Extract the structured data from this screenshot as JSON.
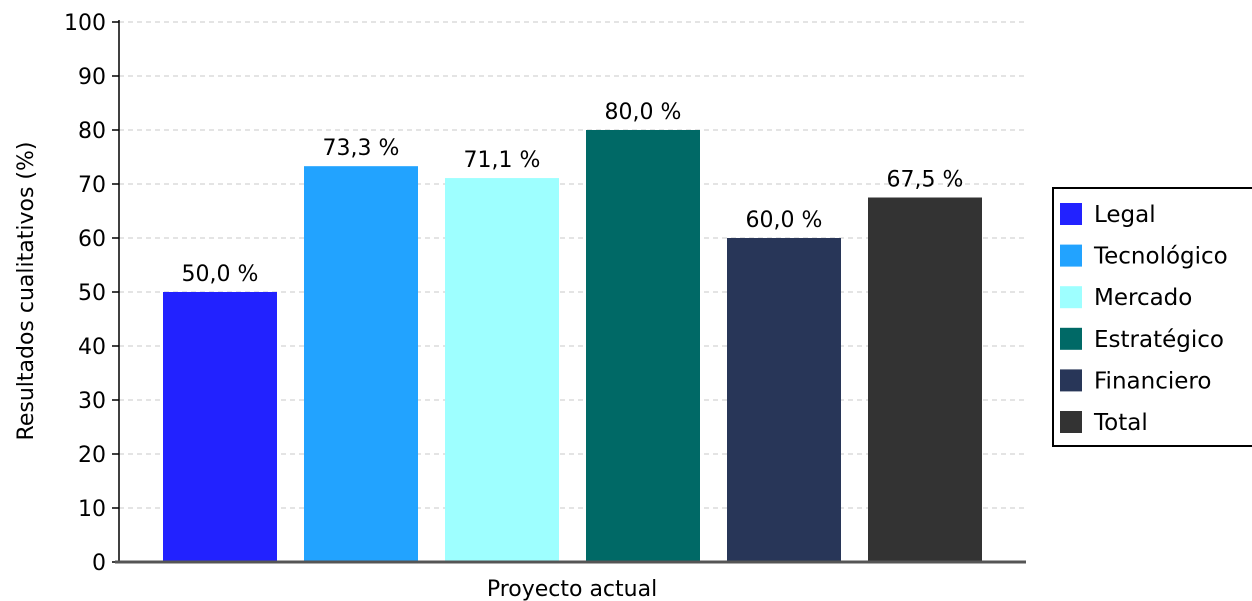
{
  "chart_data": {
    "type": "bar",
    "title": "",
    "xlabel": "Proyecto actual",
    "ylabel": "Resultados cualitativos (%)",
    "ylim": [
      0,
      100
    ],
    "yticks": [
      0,
      10,
      20,
      30,
      40,
      50,
      60,
      70,
      80,
      90,
      100
    ],
    "grid": true,
    "legend_position": "right",
    "categories": [
      "Proyecto actual"
    ],
    "series": [
      {
        "name": "Legal",
        "values": [
          50.0
        ],
        "label": "50,0 %",
        "color": "#2222ff"
      },
      {
        "name": "Tecnológico",
        "values": [
          73.3
        ],
        "label": "73,3 %",
        "color": "#22a3ff"
      },
      {
        "name": "Mercado",
        "values": [
          71.1
        ],
        "label": "71,1 %",
        "color": "#9effff"
      },
      {
        "name": "Estratégico",
        "values": [
          80.0
        ],
        "label": "80,0 %",
        "color": "#006966"
      },
      {
        "name": "Financiero",
        "values": [
          60.0
        ],
        "label": "60,0 %",
        "color": "#283658"
      },
      {
        "name": "Total",
        "values": [
          67.5
        ],
        "label": "67,5 %",
        "color": "#333333"
      }
    ]
  }
}
